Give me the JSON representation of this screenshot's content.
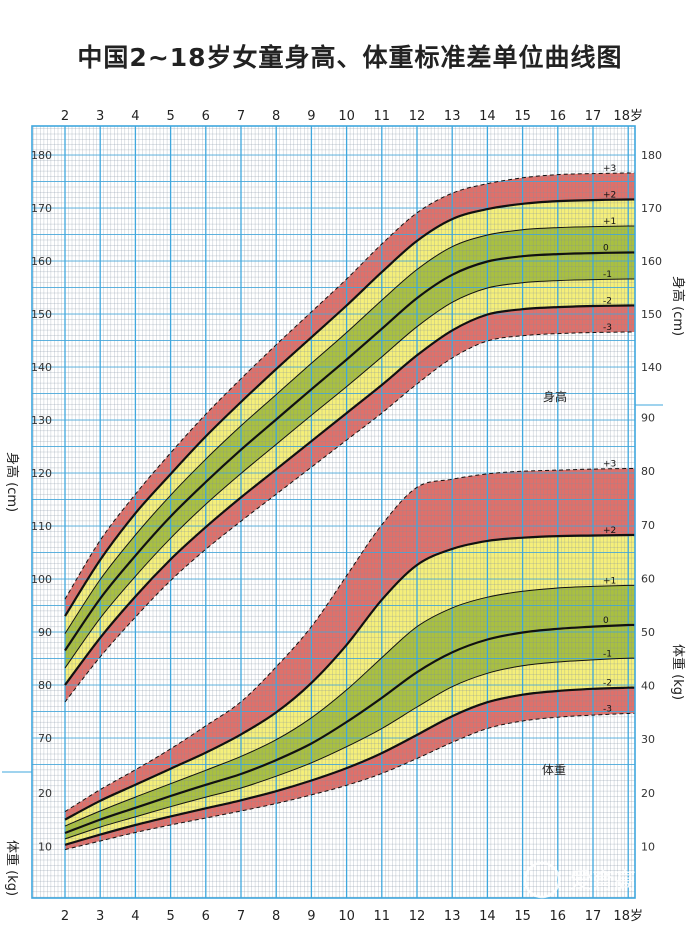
{
  "title": "中国2~18岁女童身高、体重标准差单位曲线图",
  "watermark": "爱育高",
  "colors": {
    "outer_band": "#e0706a",
    "middle_band": "#f5ef7a",
    "inner_band": "#a9c040",
    "grid_major": "#3fa7dd",
    "grid_minor": "#7f8fa0",
    "median_line": "#111111"
  },
  "chart_data": [
    {
      "type": "line",
      "panel_label": "身高",
      "ylabel": "身高 (cm)",
      "ylim": [
        62,
        182
      ],
      "yticks": [
        70,
        80,
        90,
        100,
        110,
        120,
        130,
        140,
        150,
        160,
        170,
        180
      ],
      "right_yticks": [
        140,
        150,
        160,
        170,
        180
      ],
      "x": [
        2,
        3,
        4,
        5,
        6,
        7,
        8,
        9,
        10,
        11,
        12,
        13,
        14,
        15,
        16,
        17,
        18
      ],
      "xtick_labels": [
        "2",
        "3",
        "4",
        "5",
        "6",
        "7",
        "8",
        "9",
        "10",
        "11",
        "12",
        "13",
        "14",
        "15",
        "16",
        "17",
        "18岁"
      ],
      "series": [
        {
          "name": "+3",
          "values": [
            96.2,
            107.3,
            116.0,
            123.8,
            131.1,
            137.8,
            144.2,
            150.4,
            156.6,
            163.2,
            169.1,
            172.8,
            174.6,
            175.7,
            176.3,
            176.5,
            176.6
          ]
        },
        {
          "name": "+2",
          "values": [
            93.0,
            103.6,
            112.4,
            119.8,
            126.9,
            133.4,
            139.6,
            145.6,
            151.6,
            157.9,
            163.8,
            167.9,
            169.8,
            170.8,
            171.3,
            171.5,
            171.6
          ]
        },
        {
          "name": "+1",
          "values": [
            89.7,
            99.9,
            108.3,
            115.8,
            122.6,
            128.9,
            134.8,
            140.7,
            146.5,
            152.6,
            158.4,
            162.7,
            164.9,
            165.9,
            166.3,
            166.5,
            166.6
          ]
        },
        {
          "name": "0",
          "values": [
            86.5,
            96.3,
            104.4,
            111.8,
            118.3,
            124.4,
            130.1,
            135.8,
            141.4,
            147.2,
            153.0,
            157.4,
            159.9,
            160.9,
            161.3,
            161.5,
            161.6
          ]
        },
        {
          "name": "-1",
          "values": [
            83.2,
            92.6,
            100.5,
            107.7,
            114.1,
            119.9,
            125.4,
            130.9,
            136.3,
            141.9,
            147.6,
            152.2,
            154.9,
            155.9,
            156.3,
            156.5,
            156.6
          ]
        },
        {
          "name": "-2",
          "values": [
            80.0,
            88.9,
            96.7,
            103.7,
            109.8,
            115.4,
            120.7,
            126.0,
            131.3,
            136.6,
            142.2,
            146.9,
            149.9,
            150.9,
            151.3,
            151.5,
            151.6
          ]
        },
        {
          "name": "-3",
          "values": [
            76.8,
            85.3,
            92.8,
            99.7,
            105.6,
            110.9,
            116.0,
            121.1,
            126.2,
            131.3,
            136.8,
            141.7,
            144.9,
            145.9,
            146.3,
            146.5,
            146.6
          ]
        }
      ]
    },
    {
      "type": "line",
      "panel_label": "体重",
      "ylabel": "体重 (kg)",
      "right_ylabel": "体重 (kg)",
      "ylim": [
        0,
        95
      ],
      "yticks": [
        10,
        20
      ],
      "right_yticks": [
        10,
        20,
        30,
        40,
        50,
        60,
        70,
        80,
        90
      ],
      "x": [
        2,
        3,
        4,
        5,
        6,
        7,
        8,
        9,
        10,
        11,
        12,
        13,
        14,
        15,
        16,
        17,
        18
      ],
      "xtick_labels": [
        "2",
        "3",
        "4",
        "5",
        "6",
        "7",
        "8",
        "9",
        "10",
        "11",
        "12",
        "13",
        "14",
        "15",
        "16",
        "17",
        "18岁"
      ],
      "series": [
        {
          "name": "+3",
          "values": [
            16.5,
            20.6,
            24.3,
            28.2,
            32.5,
            37.0,
            43.5,
            51.0,
            60.5,
            70.0,
            77.0,
            78.5,
            79.5,
            80.0,
            80.2,
            80.4,
            80.5
          ]
        },
        {
          "name": "+2",
          "values": [
            15.0,
            18.5,
            21.5,
            24.5,
            27.5,
            30.9,
            35.0,
            40.5,
            47.6,
            56.0,
            62.5,
            65.5,
            67.0,
            67.6,
            67.9,
            68.0,
            68.1
          ]
        },
        {
          "name": "+1",
          "values": [
            13.8,
            16.6,
            19.2,
            21.7,
            24.2,
            26.8,
            29.9,
            34.0,
            39.2,
            45.2,
            51.0,
            54.5,
            56.5,
            57.6,
            58.2,
            58.5,
            58.7
          ]
        },
        {
          "name": "0",
          "values": [
            12.5,
            15.0,
            17.2,
            19.4,
            21.5,
            23.5,
            26.1,
            29.2,
            33.2,
            37.7,
            42.5,
            46.2,
            48.6,
            49.9,
            50.6,
            51.0,
            51.3
          ]
        },
        {
          "name": "-1",
          "values": [
            11.4,
            13.6,
            15.5,
            17.4,
            19.2,
            20.9,
            23.1,
            25.6,
            28.6,
            32.0,
            36.0,
            39.8,
            42.3,
            43.7,
            44.4,
            44.8,
            45.1
          ]
        },
        {
          "name": "-2",
          "values": [
            10.3,
            12.2,
            14.0,
            15.6,
            17.1,
            18.6,
            20.3,
            22.3,
            24.6,
            27.4,
            30.8,
            34.3,
            36.9,
            38.3,
            39.0,
            39.4,
            39.6
          ]
        },
        {
          "name": "-3",
          "values": [
            9.4,
            11.0,
            12.6,
            14.0,
            15.3,
            16.6,
            18.0,
            19.6,
            21.4,
            23.6,
            26.4,
            29.4,
            32.0,
            33.4,
            34.1,
            34.5,
            34.8
          ]
        }
      ]
    }
  ]
}
